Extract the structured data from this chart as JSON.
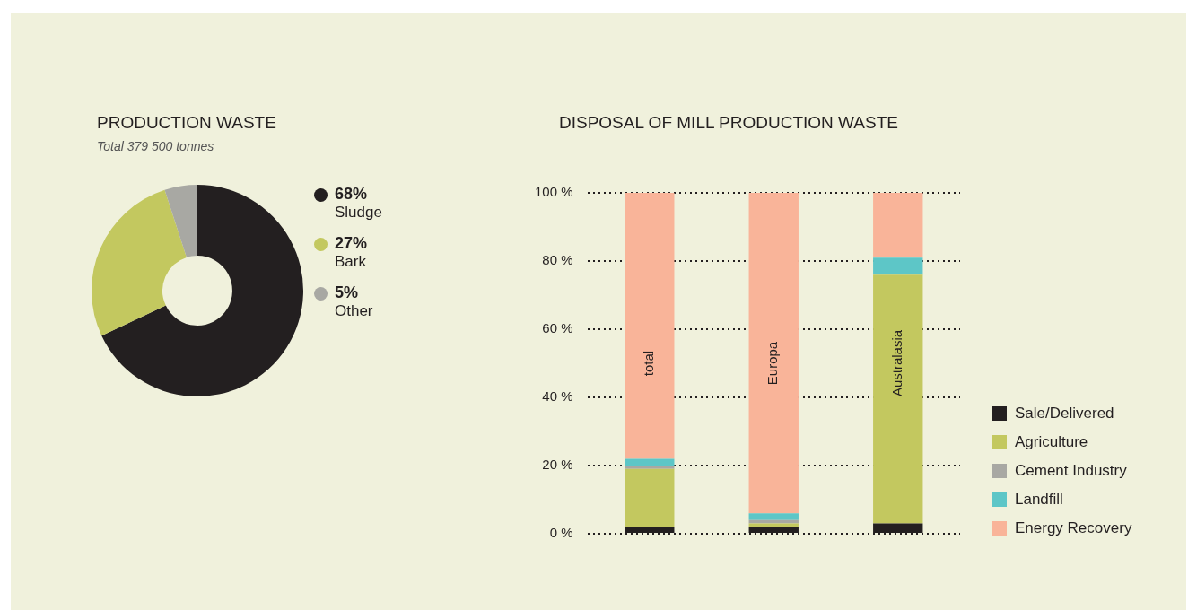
{
  "chart_data": [
    {
      "type": "donut",
      "title": "PRODUCTION WASTE",
      "subtitle": "Total 379 500 tonnes",
      "categories": [
        "Sludge",
        "Bark",
        "Other"
      ],
      "values": [
        68,
        27,
        5
      ],
      "colors": [
        "#231f20",
        "#c3c85f",
        "#a8a8a3"
      ],
      "value_labels": [
        "68%",
        "27%",
        "5%"
      ],
      "legend": "right"
    },
    {
      "type": "bar",
      "title": "DISPOSAL OF MILL PRODUCTION WASTE",
      "categories": [
        "total",
        "Europa",
        "Australasia"
      ],
      "stacked": true,
      "ylim": [
        0,
        100
      ],
      "yticks": [
        {
          "value": 0,
          "label": "0 %"
        },
        {
          "value": 20,
          "label": "20 %"
        },
        {
          "value": 40,
          "label": "40 %"
        },
        {
          "value": 60,
          "label": "60 %"
        },
        {
          "value": 80,
          "label": "80 %"
        },
        {
          "value": 100,
          "label": "100 %"
        }
      ],
      "grid": "y",
      "legend": "right",
      "tick_labels": "y",
      "series": [
        {
          "name": "Sale/Delivered",
          "color": "#231f20",
          "values": [
            2,
            2,
            3
          ]
        },
        {
          "name": "Agriculture",
          "color": "#c3c85f",
          "values": [
            17,
            1,
            73
          ]
        },
        {
          "name": "Cement Industry",
          "color": "#a8a8a3",
          "values": [
            1,
            1,
            0
          ]
        },
        {
          "name": "Landfill",
          "color": "#5dc6c7",
          "values": [
            2,
            2,
            5
          ]
        },
        {
          "name": "Energy Recovery",
          "color": "#f9b499",
          "values": [
            78,
            94,
            19
          ]
        }
      ]
    }
  ]
}
